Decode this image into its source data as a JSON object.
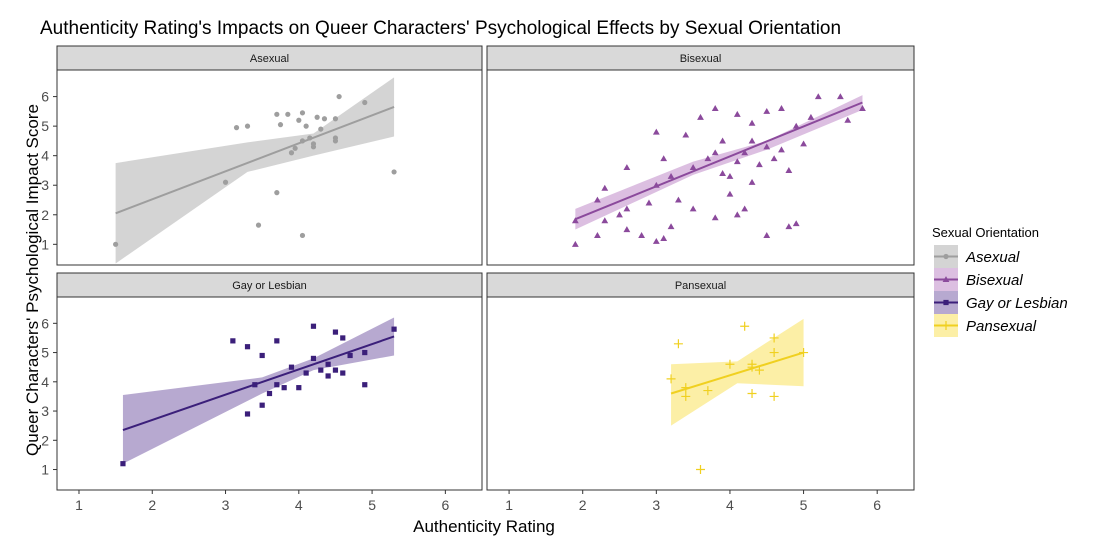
{
  "chart_data": {
    "type": "scatter",
    "title": "Authenticity Rating's Impacts on Queer Characters' Psychological Effects by Sexual Orientation",
    "xlabel": "Authenticity Rating",
    "ylabel": "Queer Characters' Psychological Impact Score",
    "xlim": [
      0.7,
      6.5
    ],
    "ylim": [
      0.3,
      6.9
    ],
    "x_ticks": [
      1,
      2,
      3,
      4,
      5,
      6
    ],
    "y_ticks": [
      1,
      2,
      3,
      4,
      5,
      6
    ],
    "x_tick_labels": [
      "1",
      "2",
      "3",
      "4",
      "5",
      "6"
    ],
    "y_tick_labels": [
      "1",
      "2",
      "3",
      "4",
      "5",
      "6"
    ],
    "grid": false,
    "legend": {
      "title": "Sexual Orientation",
      "position": "right"
    },
    "panels": [
      {
        "name": "Asexual",
        "color": "#9e9e9e",
        "band_color": "#cccccc",
        "marker": "circle",
        "fit": {
          "x": [
            1.5,
            5.3
          ],
          "y": [
            2.05,
            5.65
          ]
        },
        "band": {
          "x": [
            1.5,
            3.3,
            4.2,
            5.3
          ],
          "lower": [
            0.35,
            3.45,
            4.0,
            4.65
          ],
          "upper": [
            3.75,
            4.45,
            4.75,
            6.65
          ]
        },
        "points": [
          [
            1.5,
            1.0
          ],
          [
            3.0,
            3.1
          ],
          [
            3.15,
            4.95
          ],
          [
            3.3,
            5.0
          ],
          [
            3.45,
            1.65
          ],
          [
            3.7,
            2.75
          ],
          [
            3.7,
            5.4
          ],
          [
            3.75,
            5.05
          ],
          [
            3.85,
            5.4
          ],
          [
            3.9,
            4.1
          ],
          [
            3.95,
            4.25
          ],
          [
            4.0,
            5.2
          ],
          [
            4.05,
            4.5
          ],
          [
            4.05,
            5.45
          ],
          [
            4.05,
            1.3
          ],
          [
            4.1,
            5.0
          ],
          [
            4.15,
            4.6
          ],
          [
            4.2,
            4.3
          ],
          [
            4.2,
            4.4
          ],
          [
            4.25,
            5.3
          ],
          [
            4.3,
            4.9
          ],
          [
            4.35,
            5.25
          ],
          [
            4.5,
            4.5
          ],
          [
            4.5,
            4.6
          ],
          [
            4.5,
            5.25
          ],
          [
            4.55,
            6.0
          ],
          [
            4.9,
            5.8
          ],
          [
            5.3,
            3.45
          ]
        ]
      },
      {
        "name": "Bisexual",
        "color": "#8b4a9c",
        "band_color": "#d6b4dc",
        "marker": "triangle",
        "fit": {
          "x": [
            1.9,
            5.8
          ],
          "y": [
            1.85,
            5.8
          ]
        },
        "band": {
          "x": [
            1.9,
            3.5,
            4.5,
            5.8
          ],
          "lower": [
            1.5,
            3.35,
            4.2,
            5.55
          ],
          "upper": [
            2.2,
            3.8,
            4.5,
            6.05
          ]
        },
        "points": [
          [
            1.9,
            1.0
          ],
          [
            1.9,
            1.8
          ],
          [
            2.2,
            1.3
          ],
          [
            2.2,
            2.5
          ],
          [
            2.3,
            1.8
          ],
          [
            2.3,
            2.9
          ],
          [
            2.5,
            2.0
          ],
          [
            2.6,
            1.5
          ],
          [
            2.6,
            2.2
          ],
          [
            2.6,
            3.6
          ],
          [
            2.8,
            1.3
          ],
          [
            2.9,
            2.4
          ],
          [
            3.0,
            1.1
          ],
          [
            3.0,
            3.0
          ],
          [
            3.0,
            4.8
          ],
          [
            3.1,
            1.2
          ],
          [
            3.1,
            3.9
          ],
          [
            3.2,
            1.6
          ],
          [
            3.2,
            3.3
          ],
          [
            3.3,
            2.5
          ],
          [
            3.4,
            4.7
          ],
          [
            3.5,
            2.2
          ],
          [
            3.5,
            3.6
          ],
          [
            3.6,
            5.3
          ],
          [
            3.7,
            3.9
          ],
          [
            3.8,
            1.9
          ],
          [
            3.8,
            4.1
          ],
          [
            3.8,
            5.6
          ],
          [
            3.9,
            3.4
          ],
          [
            3.9,
            4.5
          ],
          [
            4.0,
            2.7
          ],
          [
            4.0,
            3.3
          ],
          [
            4.1,
            2.0
          ],
          [
            4.1,
            3.8
          ],
          [
            4.1,
            5.4
          ],
          [
            4.2,
            2.2
          ],
          [
            4.2,
            4.1
          ],
          [
            4.3,
            3.1
          ],
          [
            4.3,
            4.5
          ],
          [
            4.3,
            5.1
          ],
          [
            4.4,
            3.7
          ],
          [
            4.5,
            1.3
          ],
          [
            4.5,
            4.3
          ],
          [
            4.5,
            5.5
          ],
          [
            4.6,
            3.9
          ],
          [
            4.7,
            4.2
          ],
          [
            4.7,
            5.6
          ],
          [
            4.8,
            1.6
          ],
          [
            4.8,
            3.5
          ],
          [
            4.9,
            1.7
          ],
          [
            4.9,
            5.0
          ],
          [
            5.0,
            4.4
          ],
          [
            5.1,
            5.3
          ],
          [
            5.2,
            6.0
          ],
          [
            5.5,
            6.0
          ],
          [
            5.6,
            5.2
          ],
          [
            5.8,
            5.6
          ]
        ]
      },
      {
        "name": "Gay or Lesbian",
        "color": "#3b1f7a",
        "band_color": "#aa9ac8",
        "marker": "square",
        "fit": {
          "x": [
            1.6,
            5.3
          ],
          "y": [
            2.35,
            5.55
          ]
        },
        "band": {
          "x": [
            1.6,
            3.5,
            4.2,
            5.3
          ],
          "lower": [
            1.2,
            3.6,
            4.4,
            4.9
          ],
          "upper": [
            3.55,
            4.15,
            4.8,
            6.2
          ]
        },
        "points": [
          [
            1.6,
            1.2
          ],
          [
            3.1,
            5.4
          ],
          [
            3.3,
            5.2
          ],
          [
            3.3,
            2.9
          ],
          [
            3.4,
            3.9
          ],
          [
            3.5,
            4.9
          ],
          [
            3.5,
            3.2
          ],
          [
            3.6,
            3.6
          ],
          [
            3.7,
            3.9
          ],
          [
            3.7,
            5.4
          ],
          [
            3.8,
            3.8
          ],
          [
            3.9,
            4.5
          ],
          [
            4.0,
            3.8
          ],
          [
            4.1,
            4.3
          ],
          [
            4.2,
            5.9
          ],
          [
            4.2,
            4.8
          ],
          [
            4.3,
            4.4
          ],
          [
            4.4,
            4.6
          ],
          [
            4.4,
            4.2
          ],
          [
            4.5,
            5.7
          ],
          [
            4.5,
            4.4
          ],
          [
            4.6,
            5.5
          ],
          [
            4.6,
            4.3
          ],
          [
            4.7,
            4.9
          ],
          [
            4.9,
            5.0
          ],
          [
            4.9,
            3.9
          ],
          [
            5.3,
            5.8
          ]
        ]
      },
      {
        "name": "Pansexual",
        "color": "#f0d020",
        "band_color": "#fbec96",
        "marker": "plus",
        "fit": {
          "x": [
            3.2,
            5.0
          ],
          "y": [
            3.6,
            5.0
          ]
        },
        "band": {
          "x": [
            3.2,
            4.1,
            5.0
          ],
          "lower": [
            2.5,
            3.95,
            3.85
          ],
          "upper": [
            4.6,
            4.7,
            6.15
          ]
        },
        "points": [
          [
            3.2,
            4.1
          ],
          [
            3.3,
            5.3
          ],
          [
            3.4,
            3.5
          ],
          [
            3.4,
            3.8
          ],
          [
            3.6,
            1.0
          ],
          [
            3.7,
            3.7
          ],
          [
            4.0,
            4.6
          ],
          [
            4.2,
            5.9
          ],
          [
            4.3,
            4.5
          ],
          [
            4.3,
            4.6
          ],
          [
            4.3,
            3.6
          ],
          [
            4.4,
            4.4
          ],
          [
            4.6,
            3.5
          ],
          [
            4.6,
            5.0
          ],
          [
            4.6,
            5.5
          ],
          [
            5.0,
            5.0
          ]
        ]
      }
    ]
  }
}
